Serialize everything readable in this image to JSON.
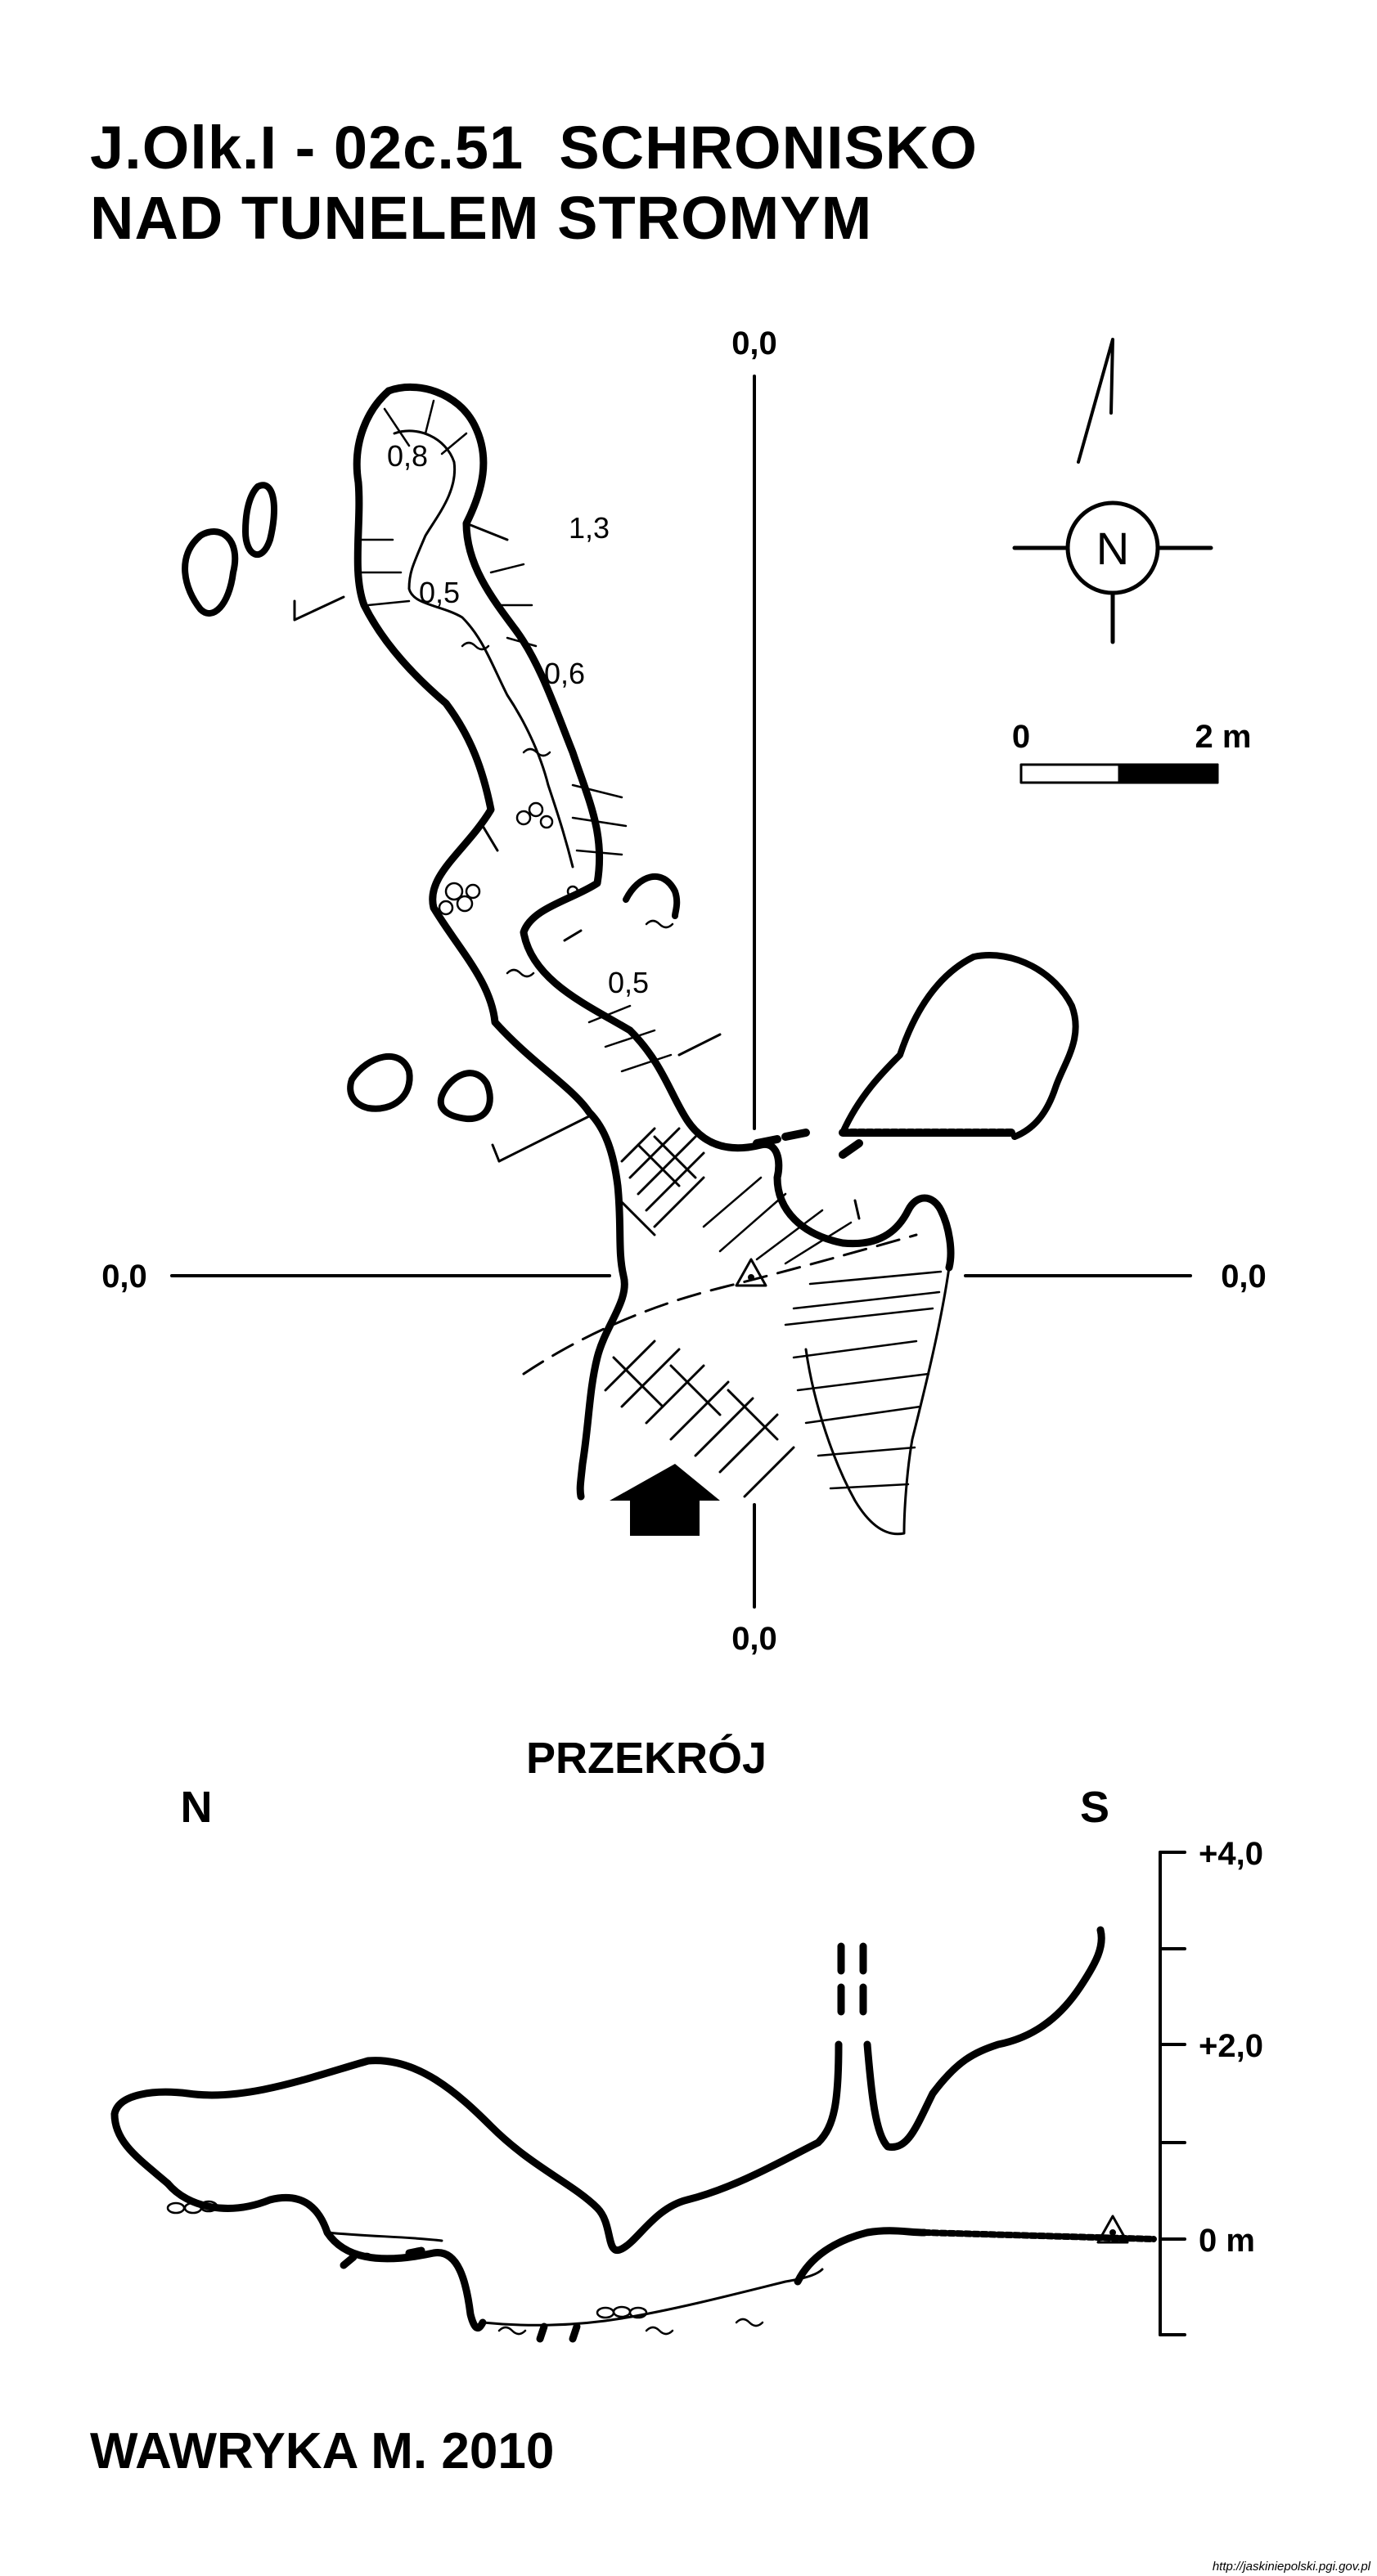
{
  "title": {
    "line1": "J.Olk.I - 02c.51  SCHRONISKO",
    "line2": "NAD TUNELEM STROMYM"
  },
  "plan": {
    "axis_labels": {
      "top": "0,0",
      "bottom": "0,0",
      "left": "0,0",
      "right": "0,0"
    },
    "heights": [
      "0,8",
      "1,3",
      "0,5",
      "0,6",
      "0,5"
    ],
    "north_letter": "N",
    "scale": {
      "start": "0",
      "end": "2 m"
    },
    "icons": [
      "north-arrow-icon",
      "entrance-arrow-icon",
      "survey-station-icon"
    ]
  },
  "section": {
    "title": "PRZEKRÓJ",
    "north": "N",
    "south": "S",
    "scale_labels": [
      "+4,0",
      "+2,0",
      "0 m"
    ]
  },
  "author": "WAWRYKA M. 2010",
  "source": "http://jaskiniepolski.pgi.gov.pl",
  "colors": {
    "ink": "#000000",
    "background": "#ffffff"
  }
}
